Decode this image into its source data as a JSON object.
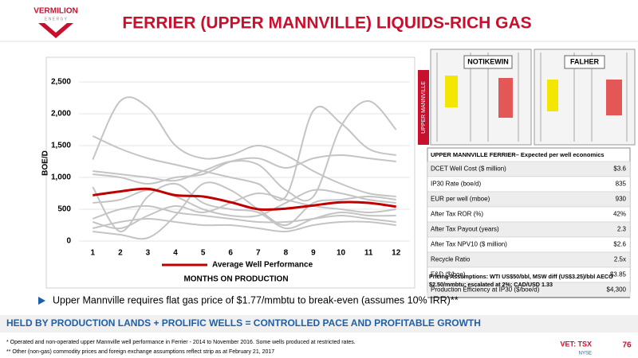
{
  "logo": {
    "name": "VERMILION",
    "sub": "E N E R G Y"
  },
  "header": {
    "title": "FERRIER (UPPER MANNVILLE) LIQUIDS-RICH GAS"
  },
  "chart_data": {
    "type": "line",
    "y_label": "BOE/D",
    "x_label": "MONTHS ON PRODUCTION",
    "x": [
      1,
      2,
      3,
      4,
      5,
      6,
      7,
      8,
      9,
      10,
      11,
      12
    ],
    "xlim": [
      0.5,
      12.5
    ],
    "xticks": [
      1,
      2,
      3,
      4,
      5,
      6,
      7,
      8,
      9,
      10,
      11,
      12
    ],
    "ylim": [
      0,
      2500
    ],
    "yticks": [
      0,
      500,
      {
        "value": 1000,
        "label": "1,000"
      },
      {
        "value": 1500,
        "label": "1,500"
      },
      {
        "value": 2000,
        "label": "2,000"
      },
      {
        "value": 2500,
        "label": "2,500"
      }
    ],
    "grid": true,
    "legend": "bottom",
    "series": [
      {
        "color": "#c4c4c4",
        "values": [
          1280,
          2200,
          2100,
          1500,
          1300,
          1350,
          1500,
          1350,
          1100,
          900,
          750,
          700
        ]
      },
      {
        "color": "#c4c4c4",
        "values": [
          1650,
          1450,
          1300,
          1200,
          1100,
          1000,
          900,
          700,
          2050,
          1850,
          1450,
          1350
        ]
      },
      {
        "color": "#c4c4c4",
        "values": [
          1100,
          1050,
          1000,
          950,
          1100,
          1250,
          1200,
          800,
          700,
          1800,
          2200,
          1750
        ]
      },
      {
        "color": "#c4c4c4",
        "values": [
          1050,
          1000,
          900,
          1000,
          1050,
          1250,
          1300,
          1150,
          1300,
          1350,
          1300,
          1250
        ]
      },
      {
        "color": "#c4c4c4",
        "values": [
          850,
          150,
          700,
          900,
          600,
          500,
          450,
          200,
          350,
          450,
          400,
          400
        ]
      },
      {
        "color": "#c4c4c4",
        "values": [
          600,
          650,
          800,
          700,
          500,
          400,
          400,
          600,
          800,
          750,
          650,
          600
        ]
      },
      {
        "color": "#c4c4c4",
        "values": [
          350,
          500,
          550,
          450,
          400,
          350,
          300,
          300,
          350,
          400,
          350,
          300
        ]
      },
      {
        "color": "#c4c4c4",
        "values": [
          200,
          300,
          350,
          300,
          250,
          250,
          200,
          150,
          250,
          300,
          300,
          250
        ]
      },
      {
        "color": "#c4c4c4",
        "values": [
          150,
          100,
          50,
          400,
          900,
          800,
          500,
          250,
          600,
          650,
          700,
          650
        ]
      },
      {
        "color": "#c4c4c4",
        "values": [
          300,
          200,
          400,
          550,
          450,
          600,
          750,
          650,
          550,
          500,
          450,
          500
        ]
      },
      {
        "name": "Average Well Performance",
        "color": "#c00000",
        "values": [
          720,
          780,
          820,
          720,
          700,
          610,
          500,
          510,
          560,
          610,
          600,
          540
        ]
      }
    ]
  },
  "well_logs": {
    "labels": [
      "NOTIKEWIN",
      "FALHER"
    ],
    "side_label": "UPPER MANNVILLE"
  },
  "table": {
    "title": "UPPER MANNVILLE FERRIER– Expected per well economics",
    "rows": [
      [
        "DCET Well Cost ($ million)",
        "$3.6"
      ],
      [
        "IP30 Rate (boe/d)",
        "835"
      ],
      [
        "EUR per well (mboe)",
        "930"
      ],
      [
        "After Tax ROR (%)",
        "42%"
      ],
      [
        "After Tax Payout (years)",
        "2.3"
      ],
      [
        "After Tax NPV10 ($ million)",
        "$2.6"
      ],
      [
        "Recycle Ratio",
        "2.5x"
      ],
      [
        "F&D ($/boe)",
        "$3.85"
      ],
      [
        "Production Efficiency at IP30 ($/boe/d)",
        "$4,300"
      ]
    ],
    "note": "Pricing Assumptions: WTI US$50/bbl, MSW diff (US$3.25)/bbl AECO $2.50/mmbtu; escalated at 2%; CAD/USD 1.33"
  },
  "bullet": "Upper Mannville requires flat gas price of $1.77/mmbtu to break-even (assumes 10% IRR)**",
  "banner": "HELD BY PRODUCTION LANDS + PROLIFIC WELLS = CONTROLLED PACE AND PROFITABLE GROWTH",
  "footnotes": [
    "* Operated and non-operated upper Mannville well performance in Ferrier - 2014 to November 2016. Some wells produced at restricted rates.",
    "** Other (non-gas) commodity prices and foreign exchange assumptions reflect strip as at February 21, 2017"
  ],
  "footer": {
    "ticker": "VET: TSX",
    "exchange": "NYSE",
    "page": "76"
  }
}
